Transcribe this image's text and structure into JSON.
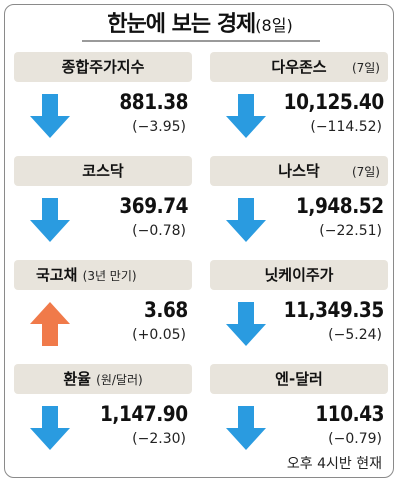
{
  "header": {
    "title": "한눈에 보는 경제",
    "date": "(8일)"
  },
  "colors": {
    "down_arrow": "#2a9be0",
    "up_arrow": "#f07a4a",
    "label_bg": "#e8e4dc"
  },
  "indicators": [
    {
      "name": "종합주가지수",
      "note": "",
      "value": "881.38",
      "change": "(−3.95)",
      "direction": "down",
      "arrow_icon": "arrow-down-icon"
    },
    {
      "name": "다우존스",
      "note": "(7일)",
      "value": "10,125.40",
      "change": "(−114.52)",
      "direction": "down",
      "arrow_icon": "arrow-down-icon"
    },
    {
      "name": "코스닥",
      "note": "",
      "value": "369.74",
      "change": "(−0.78)",
      "direction": "down",
      "arrow_icon": "arrow-down-icon"
    },
    {
      "name": "나스닥",
      "note": "(7일)",
      "value": "1,948.52",
      "change": "(−22.51)",
      "direction": "down",
      "arrow_icon": "arrow-down-icon"
    },
    {
      "name": "국고채",
      "note": "(3년 만기)",
      "value": "3.68",
      "change": "(+0.05)",
      "direction": "up",
      "arrow_icon": "arrow-up-icon"
    },
    {
      "name": "닛케이주가",
      "note": "",
      "value": "11,349.35",
      "change": "(−5.24)",
      "direction": "down",
      "arrow_icon": "arrow-down-icon"
    },
    {
      "name": "환율",
      "note": "(원/달러)",
      "value": "1,147.90",
      "change": "(−2.30)",
      "direction": "down",
      "arrow_icon": "arrow-down-icon"
    },
    {
      "name": "엔-달러",
      "note": "",
      "value": "110.43",
      "change": "(−0.79)",
      "direction": "down",
      "arrow_icon": "arrow-down-icon"
    }
  ],
  "footer": {
    "note": "오후 4시반 현재"
  }
}
